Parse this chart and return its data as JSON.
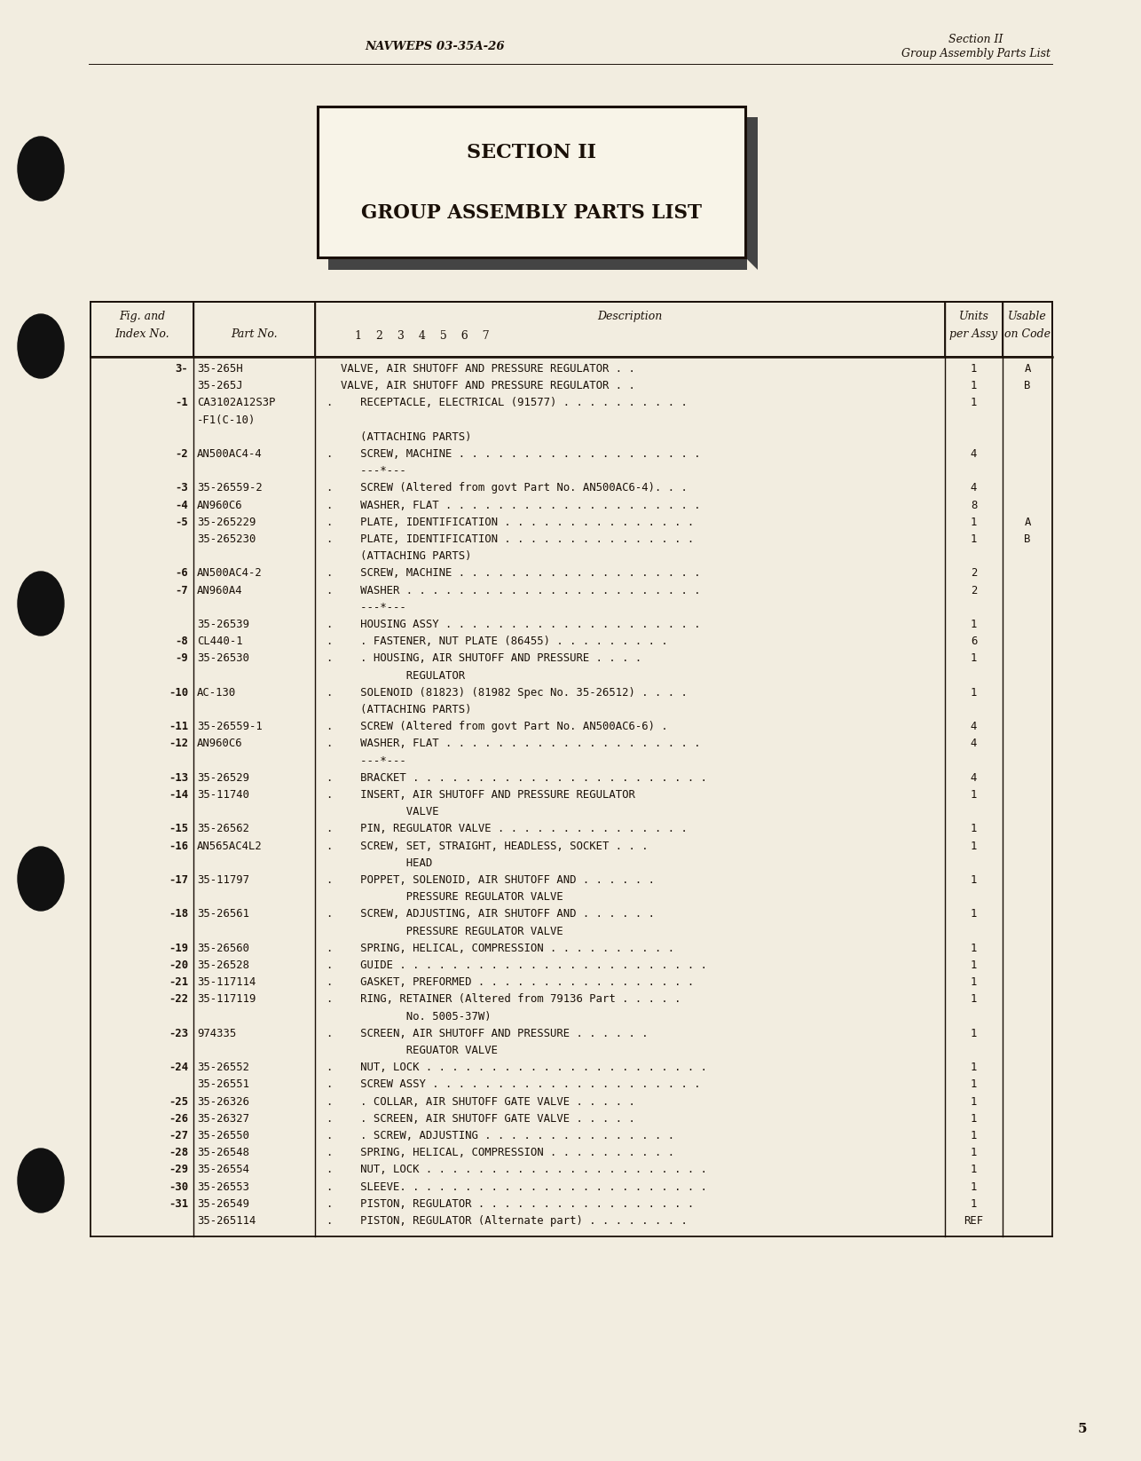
{
  "bg_color": "#f2ede0",
  "header_left": "NAVWEPS 03-35A-26",
  "header_right_line1": "Section II",
  "header_right_line2": "Group Assembly Parts List",
  "section_title_line1": "SECTION II",
  "section_title_line2": "GROUP ASSEMBLY PARTS LIST",
  "footer_page": "5",
  "text_color": "#1a1008",
  "border_color": "#1a1008",
  "table_rows": [
    [
      "3-",
      "35-265H",
      "",
      "VALVE, AIR SHUTOFF AND PRESSURE REGULATOR . .",
      "1",
      "A"
    ],
    [
      "",
      "35-265J",
      "",
      "VALVE, AIR SHUTOFF AND PRESSURE REGULATOR . .",
      "1",
      "B"
    ],
    [
      "-1",
      "CA3102A12S3P",
      ".",
      "   RECEPTACLE, ELECTRICAL (91577) . . . . . . . . . .",
      "1",
      ""
    ],
    [
      "",
      "-F1(C-10)",
      "",
      "",
      "",
      ""
    ],
    [
      "",
      "",
      "",
      "   (ATTACHING PARTS)",
      "",
      ""
    ],
    [
      "-2",
      "AN500AC4-4",
      ".",
      "   SCREW, MACHINE . . . . . . . . . . . . . . . . . . .",
      "4",
      ""
    ],
    [
      "",
      "",
      "",
      "   ---*---",
      "",
      ""
    ],
    [
      "-3",
      "35-26559-2",
      ".",
      "   SCREW (Altered from govt Part No. AN500AC6-4). . .",
      "4",
      ""
    ],
    [
      "-4",
      "AN960C6",
      ".",
      "   WASHER, FLAT . . . . . . . . . . . . . . . . . . . .",
      "8",
      ""
    ],
    [
      "-5",
      "35-265229",
      ".",
      "   PLATE, IDENTIFICATION . . . . . . . . . . . . . . .",
      "1",
      "A"
    ],
    [
      "",
      "35-265230",
      ".",
      "   PLATE, IDENTIFICATION . . . . . . . . . . . . . . .",
      "1",
      "B"
    ],
    [
      "",
      "",
      "",
      "   (ATTACHING PARTS)",
      "",
      ""
    ],
    [
      "-6",
      "AN500AC4-2",
      ".",
      "   SCREW, MACHINE . . . . . . . . . . . . . . . . . . .",
      "2",
      ""
    ],
    [
      "-7",
      "AN960A4",
      ".",
      "   WASHER . . . . . . . . . . . . . . . . . . . . . . .",
      "2",
      ""
    ],
    [
      "",
      "",
      "",
      "   ---*---",
      "",
      ""
    ],
    [
      "",
      "35-26539",
      ".",
      "   HOUSING ASSY . . . . . . . . . . . . . . . . . . . .",
      "1",
      ""
    ],
    [
      "-8",
      "CL440-1",
      ".",
      "   . FASTENER, NUT PLATE (86455) . . . . . . . . .",
      "6",
      ""
    ],
    [
      "-9",
      "35-26530",
      ".",
      "   . HOUSING, AIR SHUTOFF AND PRESSURE . . . .",
      "1",
      ""
    ],
    [
      "",
      "",
      "",
      "          REGULATOR",
      "",
      ""
    ],
    [
      "-10",
      "AC-130",
      ".",
      "   SOLENOID (81823) (81982 Spec No. 35-26512) . . . .",
      "1",
      ""
    ],
    [
      "",
      "",
      "",
      "   (ATTACHING PARTS)",
      "",
      ""
    ],
    [
      "-11",
      "35-26559-1",
      ".",
      "   SCREW (Altered from govt Part No. AN500AC6-6) .",
      "4",
      ""
    ],
    [
      "-12",
      "AN960C6",
      ".",
      "   WASHER, FLAT . . . . . . . . . . . . . . . . . . . .",
      "4",
      ""
    ],
    [
      "",
      "",
      "",
      "   ---*---",
      "",
      ""
    ],
    [
      "-13",
      "35-26529",
      ".",
      "   BRACKET . . . . . . . . . . . . . . . . . . . . . . .",
      "4",
      ""
    ],
    [
      "-14",
      "35-11740",
      ".",
      "   INSERT, AIR SHUTOFF AND PRESSURE REGULATOR",
      "1",
      ""
    ],
    [
      "",
      "",
      "",
      "          VALVE",
      "",
      ""
    ],
    [
      "-15",
      "35-26562",
      ".",
      "   PIN, REGULATOR VALVE . . . . . . . . . . . . . . .",
      "1",
      ""
    ],
    [
      "-16",
      "AN565AC4L2",
      ".",
      "   SCREW, SET, STRAIGHT, HEADLESS, SOCKET . . .",
      "1",
      ""
    ],
    [
      "",
      "",
      "",
      "          HEAD",
      "",
      ""
    ],
    [
      "-17",
      "35-11797",
      ".",
      "   POPPET, SOLENOID, AIR SHUTOFF AND . . . . . .",
      "1",
      ""
    ],
    [
      "",
      "",
      "",
      "          PRESSURE REGULATOR VALVE",
      "",
      ""
    ],
    [
      "-18",
      "35-26561",
      ".",
      "   SCREW, ADJUSTING, AIR SHUTOFF AND . . . . . .",
      "1",
      ""
    ],
    [
      "",
      "",
      "",
      "          PRESSURE REGULATOR VALVE",
      "",
      ""
    ],
    [
      "-19",
      "35-26560",
      ".",
      "   SPRING, HELICAL, COMPRESSION . . . . . . . . . .",
      "1",
      ""
    ],
    [
      "-20",
      "35-26528",
      ".",
      "   GUIDE . . . . . . . . . . . . . . . . . . . . . . . .",
      "1",
      ""
    ],
    [
      "-21",
      "35-117114",
      ".",
      "   GASKET, PREFORMED . . . . . . . . . . . . . . . . .",
      "1",
      ""
    ],
    [
      "-22",
      "35-117119",
      ".",
      "   RING, RETAINER (Altered from 79136 Part . . . . .",
      "1",
      ""
    ],
    [
      "",
      "",
      "",
      "          No. 5005-37W)",
      "",
      ""
    ],
    [
      "-23",
      "974335",
      ".",
      "   SCREEN, AIR SHUTOFF AND PRESSURE . . . . . .",
      "1",
      ""
    ],
    [
      "",
      "",
      "",
      "          REGUATOR VALVE",
      "",
      ""
    ],
    [
      "-24",
      "35-26552",
      ".",
      "   NUT, LOCK . . . . . . . . . . . . . . . . . . . . . .",
      "1",
      ""
    ],
    [
      "",
      "35-26551",
      ".",
      "   SCREW ASSY . . . . . . . . . . . . . . . . . . . . .",
      "1",
      ""
    ],
    [
      "-25",
      "35-26326",
      ".",
      "   . COLLAR, AIR SHUTOFF GATE VALVE . . . . .",
      "1",
      ""
    ],
    [
      "-26",
      "35-26327",
      ".",
      "   . SCREEN, AIR SHUTOFF GATE VALVE . . . . .",
      "1",
      ""
    ],
    [
      "-27",
      "35-26550",
      ".",
      "   . SCREW, ADJUSTING . . . . . . . . . . . . . . .",
      "1",
      ""
    ],
    [
      "-28",
      "35-26548",
      ".",
      "   SPRING, HELICAL, COMPRESSION . . . . . . . . . .",
      "1",
      ""
    ],
    [
      "-29",
      "35-26554",
      ".",
      "   NUT, LOCK . . . . . . . . . . . . . . . . . . . . . .",
      "1",
      ""
    ],
    [
      "-30",
      "35-26553",
      ".",
      "   SLEEVE. . . . . . . . . . . . . . . . . . . . . . . .",
      "1",
      ""
    ],
    [
      "-31",
      "35-26549",
      ".",
      "   PISTON, REGULATOR . . . . . . . . . . . . . . . . .",
      "1",
      ""
    ],
    [
      "",
      "35-265114",
      ".",
      "   PISTON, REGULATOR (Alternate part) . . . . . . . .",
      "REF",
      ""
    ]
  ]
}
